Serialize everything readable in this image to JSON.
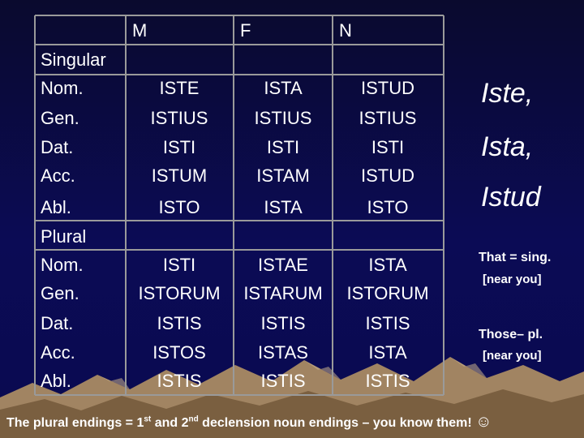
{
  "columns": [
    "M",
    "F",
    "N"
  ],
  "sections": [
    {
      "label": "Singular",
      "rows": [
        {
          "case": "Nom.",
          "forms": [
            "ISTE",
            "ISTA",
            "ISTUD"
          ]
        },
        {
          "case": "Gen.",
          "forms": [
            "ISTIUS",
            "ISTIUS",
            "ISTIUS"
          ]
        },
        {
          "case": "Dat.",
          "forms": [
            "ISTI",
            "ISTI",
            "ISTI"
          ]
        },
        {
          "case": "Acc.",
          "forms": [
            "ISTUM",
            "ISTAM",
            "ISTUD"
          ]
        },
        {
          "case": "Abl.",
          "forms": [
            "ISTO",
            "ISTA",
            "ISTO"
          ]
        }
      ]
    },
    {
      "label": "Plural",
      "rows": [
        {
          "case": "Nom.",
          "forms": [
            "ISTI",
            "ISTAE",
            "ISTA"
          ]
        },
        {
          "case": "Gen.",
          "forms": [
            "ISTORUM",
            "ISTARUM",
            "ISTORUM"
          ]
        },
        {
          "case": "Dat.",
          "forms": [
            "ISTIS",
            "ISTIS",
            "ISTIS"
          ]
        },
        {
          "case": "Acc.",
          "forms": [
            "ISTOS",
            "ISTAS",
            "ISTA"
          ]
        },
        {
          "case": "Abl.",
          "forms": [
            "ISTIS",
            "ISTIS",
            "ISTIS"
          ]
        }
      ]
    }
  ],
  "side": {
    "big": [
      "Iste,",
      "Ista,",
      "Istud"
    ],
    "notes": [
      {
        "term": "That = sing.",
        "gloss": "[near you]"
      },
      {
        "term": "Those– pl.",
        "gloss": "[near you]"
      }
    ]
  },
  "footer": {
    "a": "The plural endings = 1",
    "sup1": "st",
    "b": " and 2",
    "sup2": "nd",
    "c": " declension noun endings – you know them!",
    "smiley": "☺"
  },
  "colors": {
    "background": "#0b0b55",
    "grid": "#9a9a9a",
    "text": "#ffffff",
    "mountain": "#9a7d5a"
  }
}
